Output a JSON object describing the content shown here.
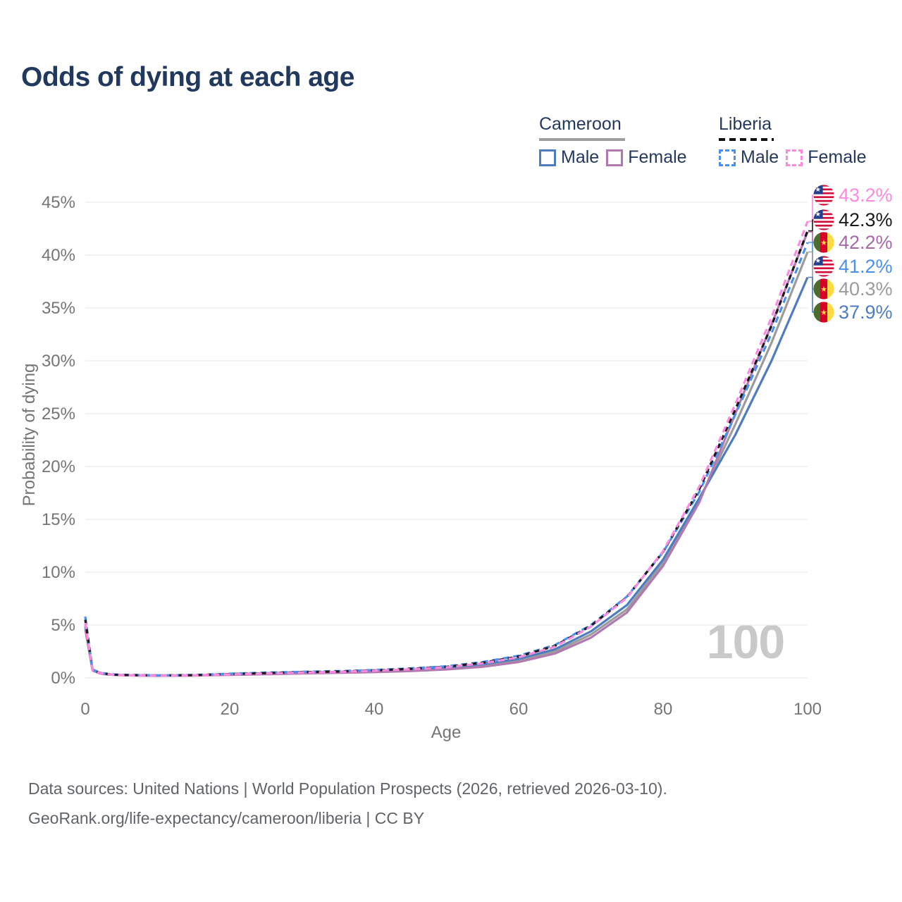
{
  "page": {
    "title": "Odds of dying at each age",
    "watermark": "100",
    "footer_line1": "Data sources: United Nations | World Population Prospects (2026, retrieved 2026-03-10).",
    "footer_line2": "GeoRank.org/life-expectancy/cameroon/liberia | CC BY"
  },
  "colors": {
    "title_text": "#21395c",
    "axis_text": "#757575",
    "gridline": "#ececec",
    "watermark": "#c9c9c9",
    "cameroon_male": "#4d7dbf",
    "cameroon_female": "#b279b0",
    "cameroon_both": "#9c9c9c",
    "liberia_male": "#4a90ee",
    "liberia_female": "#fc8ae0",
    "liberia_both": "#1a1a1a"
  },
  "legend": {
    "groups": [
      {
        "id": "cameroon",
        "label": "Cameroon",
        "underline_style": "solid",
        "underline_color": "#9e9e9e",
        "items": [
          {
            "id": "cm_male",
            "label": "Male",
            "color": "#4d7dbf",
            "dashed": false
          },
          {
            "id": "cm_female",
            "label": "Female",
            "color": "#b279b0",
            "dashed": false
          }
        ]
      },
      {
        "id": "liberia",
        "label": "Liberia",
        "underline_style": "dashed",
        "underline_color": "#111111",
        "items": [
          {
            "id": "lr_male",
            "label": "Male",
            "color": "#4a90ee",
            "dashed": true
          },
          {
            "id": "lr_female",
            "label": "Female",
            "color": "#fc8ae0",
            "dashed": true
          }
        ]
      }
    ]
  },
  "chart_data": {
    "type": "line",
    "title": "Odds of dying at each age",
    "xlabel": "Age",
    "ylabel": "Probability of dying",
    "xlim": [
      0,
      100
    ],
    "ylim": [
      0,
      45
    ],
    "xticks": [
      0,
      20,
      40,
      60,
      80,
      100
    ],
    "ytick_labels": [
      "0%",
      "5%",
      "10%",
      "15%",
      "20%",
      "25%",
      "30%",
      "35%",
      "40%",
      "45%"
    ],
    "yticks": [
      0,
      5,
      10,
      15,
      20,
      25,
      30,
      35,
      40,
      45
    ],
    "grid": "horizontal",
    "legend_position": "top-right",
    "x": [
      0,
      1,
      2,
      3,
      4,
      5,
      10,
      15,
      20,
      25,
      30,
      35,
      40,
      45,
      50,
      55,
      60,
      65,
      70,
      75,
      80,
      85,
      90,
      95,
      100
    ],
    "series": [
      {
        "id": "cm_both",
        "name": "Cameroon Both sexes",
        "color": "#9c9c9c",
        "dash": null,
        "values": [
          4.8,
          0.72,
          0.43,
          0.33,
          0.29,
          0.26,
          0.21,
          0.23,
          0.31,
          0.4,
          0.47,
          0.53,
          0.6,
          0.71,
          0.87,
          1.17,
          1.65,
          2.5,
          4.1,
          6.5,
          10.9,
          16.8,
          24.0,
          31.7,
          40.3
        ]
      },
      {
        "id": "cm_male",
        "name": "Cameroon Male",
        "color": "#4d7dbf",
        "dash": null,
        "values": [
          5.0,
          0.75,
          0.45,
          0.35,
          0.3,
          0.28,
          0.22,
          0.25,
          0.35,
          0.45,
          0.52,
          0.58,
          0.65,
          0.78,
          0.95,
          1.3,
          1.8,
          2.7,
          4.4,
          6.9,
          11.2,
          17.0,
          23.0,
          30.0,
          37.9
        ]
      },
      {
        "id": "cm_female",
        "name": "Cameroon Female",
        "color": "#b279b0",
        "dash": null,
        "values": [
          4.6,
          0.7,
          0.42,
          0.32,
          0.28,
          0.25,
          0.2,
          0.22,
          0.28,
          0.35,
          0.42,
          0.48,
          0.55,
          0.65,
          0.8,
          1.05,
          1.5,
          2.3,
          3.8,
          6.2,
          10.6,
          16.6,
          25.0,
          33.4,
          42.2
        ]
      },
      {
        "id": "lr_male",
        "name": "Liberia Male",
        "color": "#4a90ee",
        "dash": "9 6",
        "values": [
          5.8,
          0.8,
          0.5,
          0.4,
          0.33,
          0.3,
          0.25,
          0.28,
          0.4,
          0.5,
          0.58,
          0.65,
          0.75,
          0.9,
          1.1,
          1.5,
          2.1,
          3.1,
          5.0,
          7.7,
          11.9,
          17.6,
          24.9,
          32.6,
          41.2
        ]
      },
      {
        "id": "lr_both",
        "name": "Liberia Both sexes",
        "color": "#1a1a1a",
        "dash": "7 6",
        "values": [
          5.5,
          0.78,
          0.48,
          0.38,
          0.31,
          0.28,
          0.23,
          0.26,
          0.36,
          0.46,
          0.54,
          0.61,
          0.71,
          0.86,
          1.05,
          1.44,
          2.02,
          3.02,
          4.92,
          7.65,
          11.95,
          17.85,
          25.4,
          33.3,
          42.3
        ]
      },
      {
        "id": "lr_female",
        "name": "Liberia Female",
        "color": "#fc8ae0",
        "dash": "9 6",
        "values": [
          5.2,
          0.75,
          0.46,
          0.36,
          0.3,
          0.27,
          0.22,
          0.25,
          0.33,
          0.42,
          0.5,
          0.57,
          0.68,
          0.82,
          1.0,
          1.38,
          1.95,
          2.95,
          4.85,
          7.6,
          12.0,
          18.1,
          25.9,
          34.1,
          43.2
        ]
      }
    ],
    "end_labels": [
      {
        "value": "43.2%",
        "flag": "liberia",
        "color": "#fc8ae0",
        "series": "Liberia Female"
      },
      {
        "value": "42.3%",
        "flag": "liberia",
        "color": "#1a1a1a",
        "series": "Liberia Both sexes"
      },
      {
        "value": "42.2%",
        "flag": "cameroon",
        "color": "#a966a9",
        "series": "Cameroon Female"
      },
      {
        "value": "41.2%",
        "flag": "liberia",
        "color": "#4a90ee",
        "series": "Liberia Male"
      },
      {
        "value": "40.3%",
        "flag": "cameroon",
        "color": "#9c9c9c",
        "series": "Cameroon Both sexes"
      },
      {
        "value": "37.9%",
        "flag": "cameroon",
        "color": "#4d7dbf",
        "series": "Cameroon Male"
      }
    ]
  }
}
